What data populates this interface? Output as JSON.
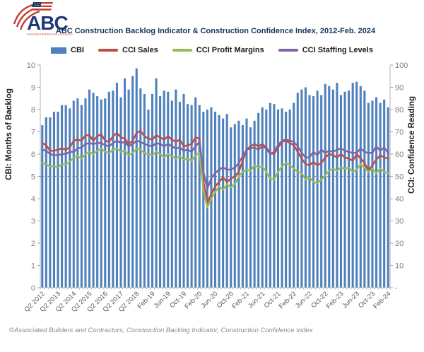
{
  "header": {
    "logo_text": "ABC",
    "logo_tagline": "Associated Builders and Contractors",
    "title": "ABC Construction Backlog Indicator & Construction Confidence Index, 2012-Feb. 2024"
  },
  "footer": {
    "text": "©Associated Builders and Contractors, Construction Backlog Indicator, Construction Confidence Index"
  },
  "colors": {
    "bar_blue": "#4f81bd",
    "sales_red": "#be4b48",
    "profit_green": "#9bbb59",
    "staffing_purple": "#8064a2",
    "title_navy": "#17375e",
    "axis_text_gray": "#808080",
    "x_label_gray": "#595959",
    "axis_line_gray": "#b3b3b3"
  },
  "chart_data": {
    "type": "bar",
    "subtype": "bar-line-combo",
    "title": "ABC Construction Backlog Indicator & Construction Confidence Index, 2012-Feb. 2024",
    "left_axis": {
      "label": "CBI: Months of Backlog",
      "range": [
        0,
        10
      ],
      "tick_step": 1
    },
    "right_axis": {
      "label": "CCI: Confidence Reading",
      "range": [
        0,
        100
      ],
      "tick_step": 10,
      "zero_label": "-"
    },
    "reference_line": {
      "axis": "right",
      "value": 50,
      "style": "dotted"
    },
    "x_label_step": 4,
    "x_labels": [
      "Q2 2012",
      "Q2 2013",
      "Q2 2014",
      "Q2 2015",
      "Q2 2016",
      "Q2 2017",
      "Q2 2018",
      "Feb-19",
      "Jun-19",
      "Oct-19",
      "Feb-20",
      "Jun-20",
      "Oct-20",
      "Feb-21",
      "Jun-21",
      "Oct-21",
      "Feb-22",
      "Jun-22",
      "Oct-22",
      "Feb-23",
      "Jun-23",
      "Oct-23",
      "Feb-24"
    ],
    "series": [
      {
        "name": "CBI",
        "type": "bar",
        "axis": "left",
        "color": "#4f81bd",
        "values": [
          7.3,
          7.65,
          7.65,
          7.9,
          7.9,
          8.2,
          8.2,
          8.05,
          8.4,
          8.5,
          8.2,
          8.5,
          8.9,
          8.75,
          8.6,
          8.45,
          8.5,
          8.8,
          8.85,
          9.2,
          8.55,
          9.4,
          8.9,
          9.5,
          9.85,
          8.95,
          8.7,
          8.0,
          8.7,
          9.4,
          8.6,
          8.85,
          8.8,
          8.4,
          8.9,
          8.35,
          8.7,
          8.25,
          8.2,
          8.55,
          8.2,
          7.9,
          8.0,
          8.1,
          7.9,
          7.75,
          7.6,
          7.8,
          7.2,
          7.35,
          7.5,
          7.3,
          7.6,
          7.2,
          7.5,
          7.85,
          8.1,
          8.0,
          8.3,
          8.25,
          8.0,
          8.05,
          7.9,
          8.0,
          8.3,
          8.75,
          8.9,
          9.0,
          8.65,
          8.6,
          8.85,
          8.65,
          9.15,
          9.05,
          8.9,
          9.2,
          8.65,
          8.8,
          8.85,
          9.2,
          9.25,
          9.05,
          8.85,
          8.3,
          8.4,
          8.55,
          8.3,
          8.45,
          8.1
        ]
      },
      {
        "name": "CCI Sales",
        "type": "line",
        "axis": "right",
        "color": "#be4b48",
        "values": [
          65,
          64,
          61.5,
          61.5,
          62,
          62.5,
          62,
          63,
          66,
          66.5,
          66,
          68.5,
          68.5,
          66,
          68,
          69,
          66,
          65.5,
          68,
          69.5,
          67.5,
          67,
          64.5,
          66,
          69.5,
          70.5,
          68,
          67,
          66.5,
          68.5,
          67.5,
          66.5,
          68,
          66.5,
          65.5,
          66.5,
          63.5,
          64,
          64.5,
          67.5,
          67,
          48,
          38,
          42,
          45.5,
          47.5,
          49.5,
          47.5,
          49,
          50,
          52,
          57,
          62,
          63.5,
          64.5,
          63.5,
          64.5,
          63,
          60.5,
          60,
          63,
          65.5,
          66,
          65,
          64,
          61,
          58,
          55.5,
          55,
          56.5,
          55,
          56,
          58.5,
          60,
          59.5,
          58.5,
          60,
          58.5,
          58,
          57,
          60,
          58,
          56,
          52.5,
          55,
          57.5,
          59.5,
          58.5,
          58
        ]
      },
      {
        "name": "CCI Profit Margins",
        "type": "line",
        "axis": "right",
        "color": "#9bbb59",
        "values": [
          56,
          55.5,
          54.5,
          54.5,
          54,
          55.5,
          55.5,
          56.5,
          58.5,
          59,
          58,
          60,
          61,
          60,
          61.5,
          62.5,
          61,
          60.5,
          62,
          62.5,
          61,
          61.5,
          59.5,
          60.5,
          62.5,
          62,
          60.5,
          60,
          59.5,
          61,
          60,
          58.5,
          60,
          59,
          58,
          59,
          57.5,
          58,
          57,
          59.5,
          60.5,
          44,
          36,
          40,
          43,
          45.5,
          44,
          46.5,
          45,
          46.5,
          50,
          52,
          53,
          52.5,
          55,
          54,
          54.5,
          52,
          49,
          48.5,
          52,
          54.5,
          56,
          55,
          53.5,
          52,
          51.5,
          48.5,
          49.5,
          47.5,
          47,
          48.5,
          50.5,
          52.5,
          53.5,
          52.5,
          54,
          53.5,
          54,
          52,
          53,
          55.5,
          54,
          52,
          53.5,
          51.5,
          53.5,
          52,
          51.5
        ]
      },
      {
        "name": "CCI Staffing Levels",
        "type": "line",
        "axis": "right",
        "color": "#8064a2",
        "values": [
          62,
          61.5,
          60,
          59.5,
          59.5,
          60,
          60,
          61,
          61,
          62.5,
          63,
          64.5,
          65,
          64.5,
          65,
          65,
          64,
          63.5,
          65,
          66,
          65,
          65.5,
          63.5,
          64.5,
          66,
          65.5,
          64.5,
          64,
          63.5,
          65,
          64.5,
          63.5,
          64.5,
          63.5,
          62.5,
          63,
          61.5,
          62,
          61,
          63.5,
          65.5,
          52,
          44.5,
          49,
          51.5,
          53,
          54,
          53,
          53,
          54,
          56,
          59,
          62,
          62.5,
          63,
          62,
          63.5,
          62.5,
          60,
          61,
          64,
          66,
          66.5,
          66,
          65.5,
          63.5,
          60.5,
          58.5,
          58.5,
          61,
          59.5,
          62,
          60.5,
          61.5,
          61,
          62,
          62.5,
          61.5,
          61,
          60.5,
          60.5,
          62.5,
          61,
          60.5,
          60.5,
          63.5,
          61.5,
          63,
          60.5
        ]
      }
    ]
  }
}
